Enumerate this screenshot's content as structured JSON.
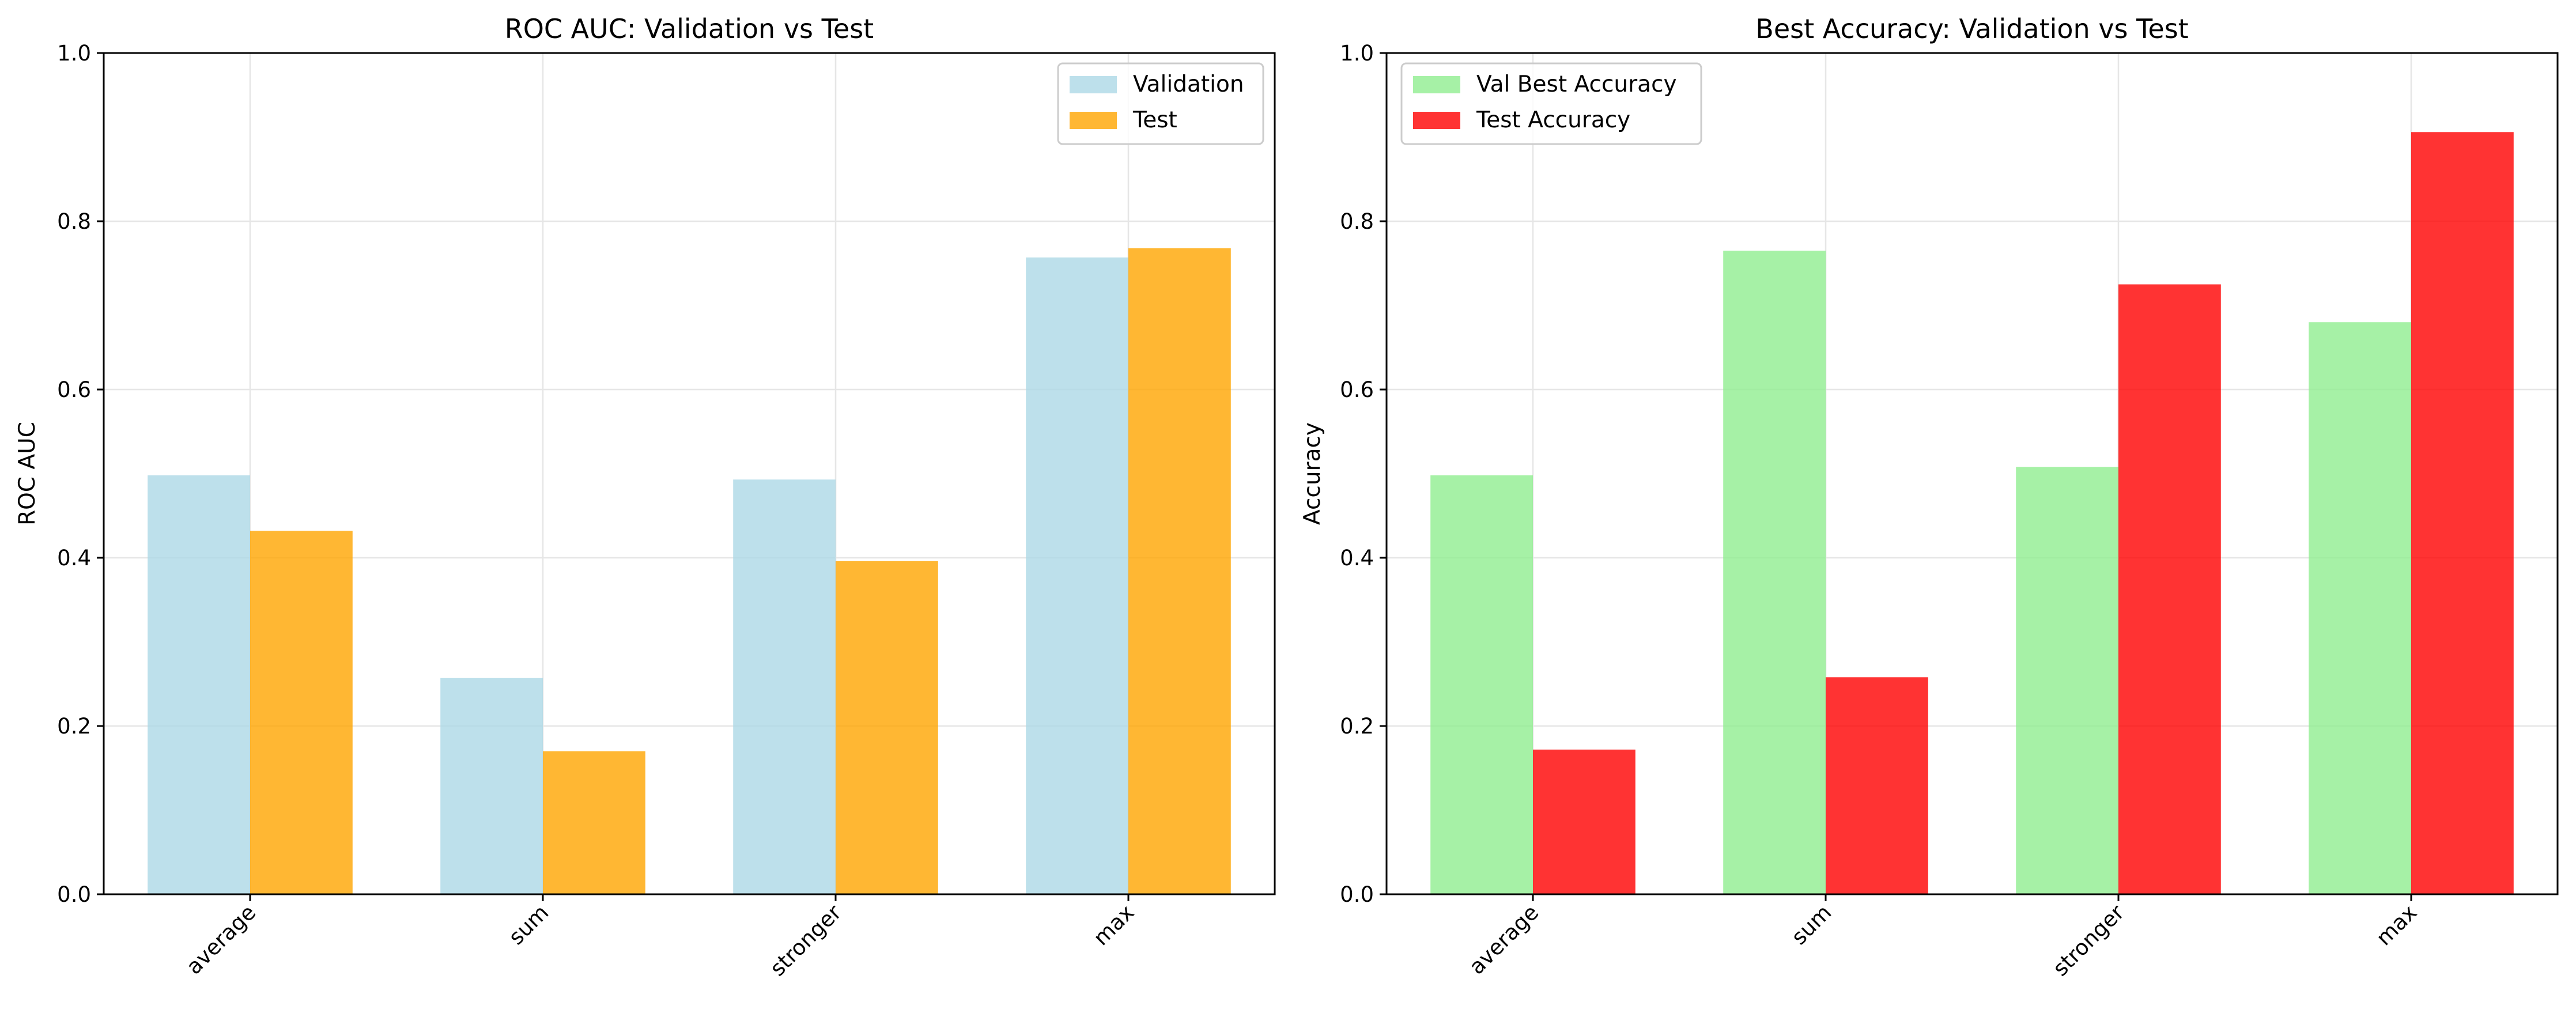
{
  "chart_data": [
    {
      "type": "bar",
      "title": "ROC AUC: Validation vs Test",
      "xlabel": "",
      "ylabel": "ROC AUC",
      "ylim": [
        0,
        1.0
      ],
      "yticks": [
        0.0,
        0.2,
        0.4,
        0.6,
        0.8,
        1.0
      ],
      "ytick_labels": [
        "0.0",
        "0.2",
        "0.4",
        "0.6",
        "0.8",
        "1.0"
      ],
      "categories": [
        "average",
        "sum",
        "stronger",
        "max"
      ],
      "grid": true,
      "legend": "top-right",
      "series": [
        {
          "name": "Validation",
          "color": "#add8e6",
          "opacity": 0.8,
          "values": [
            0.498,
            0.257,
            0.493,
            0.757
          ]
        },
        {
          "name": "Test",
          "color": "#ffa500",
          "opacity": 0.8,
          "values": [
            0.432,
            0.17,
            0.396,
            0.768
          ]
        }
      ]
    },
    {
      "type": "bar",
      "title": "Best Accuracy: Validation vs Test",
      "xlabel": "",
      "ylabel": "Accuracy",
      "ylim": [
        0,
        1.0
      ],
      "yticks": [
        0.0,
        0.2,
        0.4,
        0.6,
        0.8,
        1.0
      ],
      "ytick_labels": [
        "0.0",
        "0.2",
        "0.4",
        "0.6",
        "0.8",
        "1.0"
      ],
      "categories": [
        "average",
        "sum",
        "stronger",
        "max"
      ],
      "grid": true,
      "legend": "top-left",
      "series": [
        {
          "name": "Val Best Accuracy",
          "color": "#90ee90",
          "opacity": 0.8,
          "values": [
            0.498,
            0.765,
            0.508,
            0.68
          ]
        },
        {
          "name": "Test Accuracy",
          "color": "#ff0000",
          "opacity": 0.8,
          "values": [
            0.172,
            0.258,
            0.725,
            0.906
          ]
        }
      ]
    }
  ]
}
